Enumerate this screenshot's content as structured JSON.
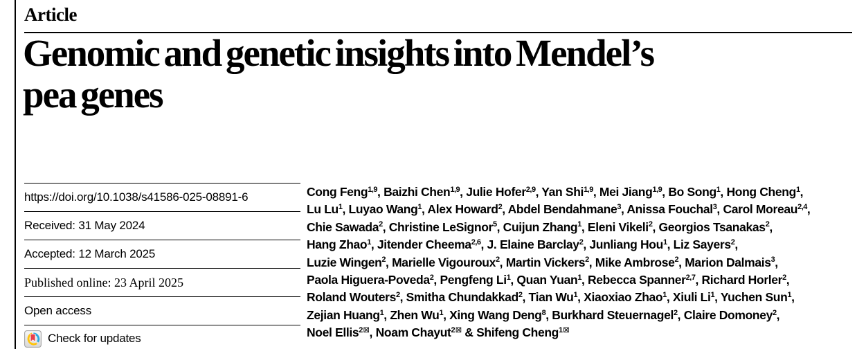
{
  "article_label": "Article",
  "title": "Genomic and genetic insights into Mendel’s pea genes",
  "title_lines": [
    "Genomic and genetic insights into Mendel’s",
    "pea genes"
  ],
  "metadata": {
    "doi": "https://doi.org/10.1038/s41586-025-08891-6",
    "received": "Received: 31 May 2024",
    "accepted": "Accepted: 12 March 2025",
    "published": "Published online: 23 April 2025",
    "open_access": "Open access",
    "check_updates": "Check for updates"
  },
  "icons": {
    "crossmark_badge": "crossmark-check-for-updates",
    "envelope": "⊠"
  },
  "colors": {
    "text": "#000000",
    "background": "#ffffff",
    "crossmark_red": "#E8404A",
    "crossmark_yellow": "#FFC40C",
    "crossmark_blue": "#2BA9E0",
    "crossmark_button_border": "#a8a8a8"
  },
  "authors": {
    "final_joiner": " & ",
    "lines": [
      [
        {
          "name": "Cong Feng",
          "sup": "1,9"
        },
        {
          "name": "Baizhi Chen",
          "sup": "1,9"
        },
        {
          "name": "Julie Hofer",
          "sup": "2,9"
        },
        {
          "name": "Yan Shi",
          "sup": "1,9"
        },
        {
          "name": "Mei Jiang",
          "sup": "1,9"
        },
        {
          "name": "Bo Song",
          "sup": "1"
        },
        {
          "name": "Hong Cheng",
          "sup": "1"
        }
      ],
      [
        {
          "name": "Lu Lu",
          "sup": "1"
        },
        {
          "name": "Luyao Wang",
          "sup": "1"
        },
        {
          "name": "Alex Howard",
          "sup": "2"
        },
        {
          "name": "Abdel Bendahmane",
          "sup": "3"
        },
        {
          "name": "Anissa Fouchal",
          "sup": "3"
        },
        {
          "name": "Carol Moreau",
          "sup": "2,4"
        }
      ],
      [
        {
          "name": "Chie Sawada",
          "sup": "2"
        },
        {
          "name": "Christine LeSignor",
          "sup": "5"
        },
        {
          "name": "Cuijun Zhang",
          "sup": "1"
        },
        {
          "name": "Eleni Vikeli",
          "sup": "2"
        },
        {
          "name": "Georgios Tsanakas",
          "sup": "2"
        }
      ],
      [
        {
          "name": "Hang Zhao",
          "sup": "1"
        },
        {
          "name": "Jitender Cheema",
          "sup": "2,6"
        },
        {
          "name": "J. Elaine Barclay",
          "sup": "2"
        },
        {
          "name": "Junliang Hou",
          "sup": "1"
        },
        {
          "name": "Liz Sayers",
          "sup": "2"
        }
      ],
      [
        {
          "name": "Luzie Wingen",
          "sup": "2"
        },
        {
          "name": "Marielle Vigouroux",
          "sup": "2"
        },
        {
          "name": "Martin Vickers",
          "sup": "2"
        },
        {
          "name": "Mike Ambrose",
          "sup": "2"
        },
        {
          "name": "Marion Dalmais",
          "sup": "3"
        }
      ],
      [
        {
          "name": "Paola Higuera-Poveda",
          "sup": "2"
        },
        {
          "name": "Pengfeng Li",
          "sup": "1"
        },
        {
          "name": "Quan Yuan",
          "sup": "1"
        },
        {
          "name": "Rebecca Spanner",
          "sup": "2,7"
        },
        {
          "name": "Richard Horler",
          "sup": "2"
        }
      ],
      [
        {
          "name": "Roland Wouters",
          "sup": "2"
        },
        {
          "name": "Smitha Chundakkad",
          "sup": "2"
        },
        {
          "name": "Tian Wu",
          "sup": "1"
        },
        {
          "name": "Xiaoxiao Zhao",
          "sup": "1"
        },
        {
          "name": "Xiuli Li",
          "sup": "1"
        },
        {
          "name": "Yuchen Sun",
          "sup": "1"
        }
      ],
      [
        {
          "name": "Zejian Huang",
          "sup": "1"
        },
        {
          "name": "Zhen Wu",
          "sup": "1"
        },
        {
          "name": "Xing Wang Deng",
          "sup": "8"
        },
        {
          "name": "Burkhard Steuernagel",
          "sup": "2"
        },
        {
          "name": "Claire Domoney",
          "sup": "2"
        }
      ],
      [
        {
          "name": "Noel Ellis",
          "sup": "2",
          "corresponding": true
        },
        {
          "name": "Noam Chayut",
          "sup": "2",
          "corresponding": true
        },
        {
          "name": "Shifeng Cheng",
          "sup": "1",
          "corresponding": true
        }
      ]
    ]
  }
}
